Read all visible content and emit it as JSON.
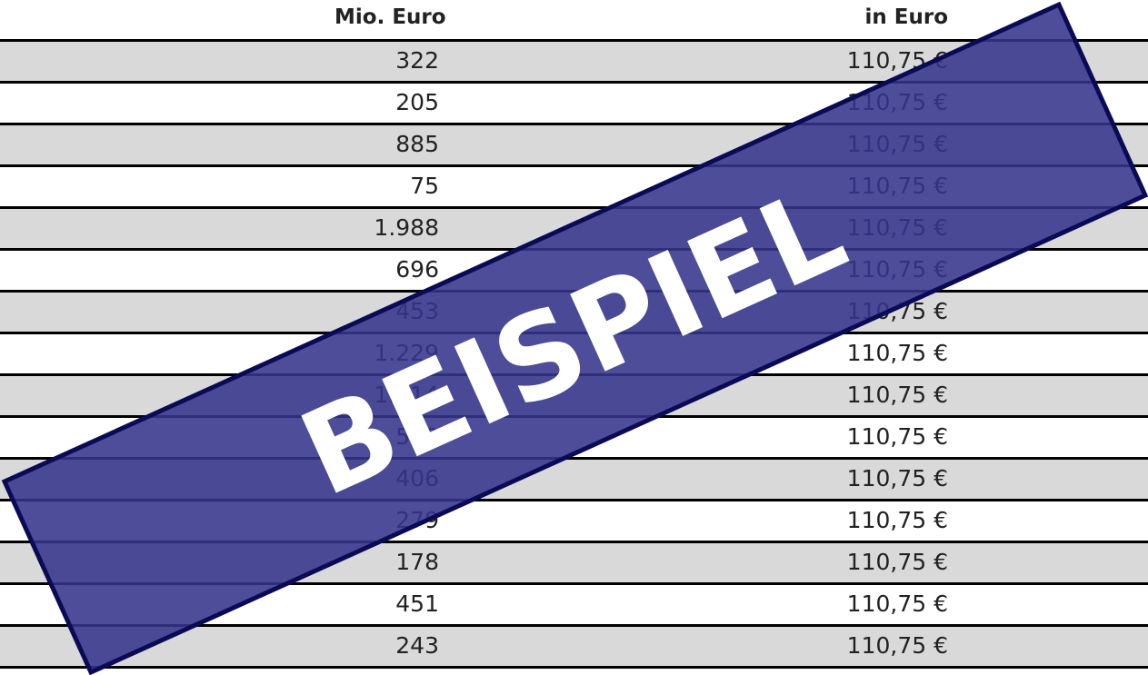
{
  "table": {
    "header": [
      "Mio. Euro",
      "in Euro"
    ],
    "rows": [
      [
        "322",
        "110,75 €"
      ],
      [
        "205",
        "110,75 €"
      ],
      [
        "885",
        "110,75 €"
      ],
      [
        "75",
        "110,75 €"
      ],
      [
        "1.988",
        "110,75 €"
      ],
      [
        "696",
        "110,75 €"
      ],
      [
        "453",
        "110,75 €"
      ],
      [
        "1.229",
        "110,75 €"
      ],
      [
        "1.414",
        "110,75 €"
      ],
      [
        "510",
        "110,75 €"
      ],
      [
        "406",
        "110,75 €"
      ],
      [
        "279",
        "110,75 €"
      ],
      [
        "178",
        "110,75 €"
      ],
      [
        "451",
        "110,75 €"
      ],
      [
        "243",
        "110,75 €"
      ]
    ]
  },
  "watermark": "BEISPIEL"
}
